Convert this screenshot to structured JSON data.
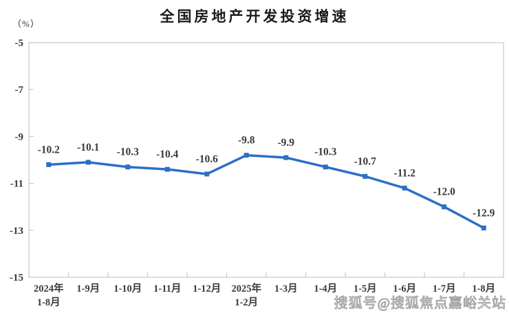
{
  "title": "全国房地产开发投资增速",
  "y_axis_unit": "（%）",
  "watermark": "搜狐号@搜狐焦点嘉峪关站",
  "colors": {
    "line": "#2b6fc6",
    "axis": "#c9c9c9",
    "text": "#3a3a3a",
    "title": "#1a1a1a"
  },
  "chart_data": {
    "type": "line",
    "title": "全国房地产开发投资增速",
    "xlabel": "",
    "ylabel": "（%）",
    "categories": [
      "2024年\n1-8月",
      "1-9月",
      "1-10月",
      "1-11月",
      "1-12月",
      "2025年\n1-2月",
      "1-3月",
      "1-4月",
      "1-5月",
      "1-6月",
      "1-7月",
      "1-8月"
    ],
    "values": [
      -10.2,
      -10.1,
      -10.3,
      -10.4,
      -10.6,
      -9.8,
      -9.9,
      -10.3,
      -10.7,
      -11.2,
      -12.0,
      -12.9
    ],
    "data_labels": [
      "-10.2",
      "-10.1",
      "-10.3",
      "-10.4",
      "-10.6",
      "-9.8",
      "-9.9",
      "-10.3",
      "-10.7",
      "-11.2",
      "-12.0",
      "-12.9"
    ],
    "ylim": [
      -15,
      -5
    ],
    "yticks": [
      -5,
      -7,
      -9,
      -11,
      -13,
      -15
    ],
    "grid": false,
    "legend": "none",
    "marker": "square",
    "line_color": "#2b6fc6"
  }
}
